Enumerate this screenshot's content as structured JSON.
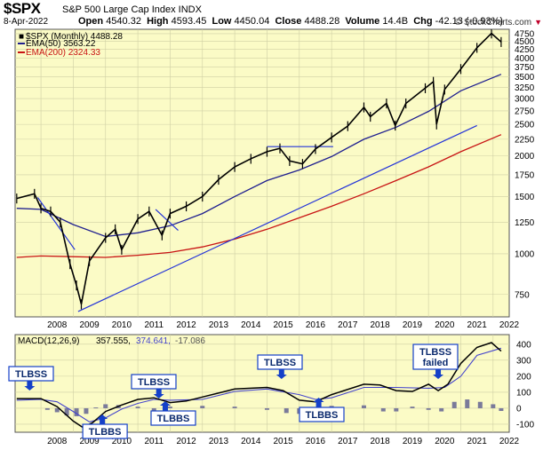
{
  "header": {
    "symbol": "$SPX",
    "description": "S&P 500 Large Cap Index  INDX",
    "date": "8-Apr-2022",
    "open_label": "Open",
    "open": "4540.32",
    "high_label": "High",
    "high": "4593.45",
    "low_label": "Low",
    "low": "4450.04",
    "close_label": "Close",
    "close": "4488.28",
    "volume_label": "Volume",
    "volume": "14.4B",
    "chg_label": "Chg",
    "chg": "-42.13 (-0.93%)",
    "watermark": "© StockCharts.com",
    "watermark_arrow": "▼"
  },
  "colors": {
    "panel_bg": "#fbfbc6",
    "price": "#000000",
    "ema50": "#1f1f8f",
    "ema200": "#c81414",
    "trendline": "#2434d8",
    "macd": "#000000",
    "signal": "#4444cc",
    "histogram": "#7a7a9a",
    "callout": "#1440c8"
  },
  "legend": {
    "price": "$SPX (Monthly) 4488.28",
    "ema50": "EMA(50) 3563.22",
    "ema200": "EMA(200) 2324.33"
  },
  "macd_legend": {
    "title": "MACD(12,26,9)",
    "v1": "357.555,",
    "v2": "374.641,",
    "v3": "-17.086"
  },
  "x_years": [
    "2008",
    "2009",
    "2010",
    "2011",
    "2012",
    "2013",
    "2014",
    "2015",
    "2016",
    "2017",
    "2018",
    "2019",
    "2020",
    "2021",
    "2022"
  ],
  "y_ticks_price": [
    750,
    1000,
    1250,
    1500,
    1750,
    2000,
    2250,
    2500,
    2750,
    3000,
    3250,
    3500,
    3750,
    4000,
    4250,
    4500,
    4750
  ],
  "y_ticks_macd": [
    -100,
    0,
    100,
    200,
    300,
    400
  ],
  "annotations": [
    {
      "text": "TLBSS",
      "year": 2007.65,
      "dir": "down"
    },
    {
      "text": "TLBSS",
      "year": 2011.65,
      "dir": "down"
    },
    {
      "text": "TLBBS",
      "year": 2011.85,
      "dir": "up"
    },
    {
      "text": "TLBBS",
      "year": 2009.9,
      "dir": "up"
    },
    {
      "text": "TLBSS",
      "year": 2015.45,
      "dir": "down"
    },
    {
      "text": "TLBBS",
      "year": 2016.6,
      "dir": "up"
    },
    {
      "text": "TLBSS",
      "year": 2020.3,
      "dir": "down",
      "line2": "failed"
    }
  ],
  "chart_data": {
    "type": "line",
    "title": "$SPX S&P 500 Large Cap Index INDX",
    "x_label": "",
    "y_label": "",
    "scale": "log",
    "ylim": [
      640,
      4900
    ],
    "xlim": [
      2007.2,
      2022.5
    ],
    "series": [
      {
        "name": "$SPX (Monthly) 4488.28",
        "x": [
          2007.25,
          2007.8,
          2008.0,
          2008.3,
          2008.6,
          2008.9,
          2009.1,
          2009.25,
          2009.5,
          2010.0,
          2010.3,
          2010.5,
          2011.0,
          2011.35,
          2011.75,
          2012.0,
          2012.5,
          2013.0,
          2013.5,
          2014.0,
          2014.5,
          2015.0,
          2015.4,
          2015.7,
          2016.1,
          2016.5,
          2017.0,
          2017.5,
          2018.0,
          2018.2,
          2018.7,
          2018.97,
          2019.3,
          2019.9,
          2020.15,
          2020.25,
          2020.5,
          2021.0,
          2021.5,
          2021.95,
          2022.25
        ],
        "values": [
          1480,
          1530,
          1380,
          1350,
          1250,
          930,
          800,
          700,
          950,
          1120,
          1190,
          1030,
          1280,
          1350,
          1140,
          1330,
          1400,
          1500,
          1690,
          1850,
          1960,
          2060,
          2110,
          1930,
          1890,
          2100,
          2280,
          2470,
          2820,
          2640,
          2900,
          2480,
          2900,
          3230,
          3380,
          2500,
          3200,
          3700,
          4300,
          4760,
          4480
        ]
      },
      {
        "name": "EMA(50) 3563.22",
        "x": [
          2007.25,
          2008.0,
          2009.0,
          2010.0,
          2011.0,
          2012.0,
          2013.0,
          2014.0,
          2015.0,
          2016.0,
          2017.0,
          2018.0,
          2019.0,
          2020.0,
          2021.0,
          2022.25
        ],
        "values": [
          1380,
          1370,
          1230,
          1130,
          1160,
          1220,
          1330,
          1500,
          1680,
          1810,
          1990,
          2250,
          2450,
          2740,
          3170,
          3563
        ]
      },
      {
        "name": "EMA(200) 2324.33",
        "x": [
          2007.25,
          2008.0,
          2009.0,
          2010.0,
          2011.0,
          2012.0,
          2013.0,
          2014.0,
          2015.0,
          2016.0,
          2017.0,
          2018.0,
          2019.0,
          2020.0,
          2021.0,
          2022.25
        ],
        "values": [
          975,
          985,
          980,
          975,
          990,
          1010,
          1050,
          1110,
          1190,
          1290,
          1400,
          1530,
          1680,
          1850,
          2060,
          2324
        ]
      }
    ],
    "macd": {
      "ylim": [
        -150,
        460
      ],
      "macd": {
        "name": "MACD(12,26,9)",
        "x": [
          2007.25,
          2008.0,
          2008.5,
          2009.0,
          2009.3,
          2009.6,
          2010.0,
          2010.5,
          2011.0,
          2011.5,
          2012.0,
          2012.5,
          2013.0,
          2014.0,
          2015.0,
          2015.5,
          2016.0,
          2016.5,
          2017.0,
          2018.0,
          2018.5,
          2019.0,
          2019.5,
          2020.0,
          2020.3,
          2020.6,
          2021.0,
          2021.5,
          2021.95,
          2022.25
        ],
        "values": [
          60,
          60,
          10,
          -80,
          -120,
          -90,
          -20,
          20,
          55,
          65,
          35,
          45,
          70,
          120,
          130,
          110,
          50,
          40,
          85,
          150,
          145,
          110,
          105,
          150,
          110,
          150,
          280,
          380,
          410,
          357
        ]
      },
      "signal": {
        "name": "signal",
        "x": [
          2007.25,
          2008.0,
          2008.5,
          2009.0,
          2009.5,
          2010.0,
          2010.5,
          2011.0,
          2011.5,
          2012.0,
          2013.0,
          2014.0,
          2015.0,
          2016.0,
          2016.5,
          2017.0,
          2018.0,
          2019.0,
          2020.0,
          2020.5,
          2021.0,
          2021.5,
          2022.25
        ],
        "values": [
          50,
          55,
          40,
          -20,
          -85,
          -60,
          -5,
          30,
          55,
          50,
          55,
          105,
          120,
          85,
          55,
          65,
          130,
          130,
          125,
          130,
          200,
          330,
          375
        ]
      },
      "histogram": {
        "x": [
          2008.2,
          2008.5,
          2008.8,
          2009.1,
          2009.4,
          2009.7,
          2010.0,
          2010.4,
          2011.0,
          2011.5,
          2012.0,
          2013.0,
          2014.0,
          2015.0,
          2015.6,
          2016.0,
          2016.5,
          2017.0,
          2018.0,
          2018.6,
          2019.0,
          2019.5,
          2020.0,
          2020.4,
          2020.8,
          2021.2,
          2021.6,
          2022.0,
          2022.25
        ],
        "values": [
          -10,
          -25,
          -45,
          -50,
          -35,
          5,
          25,
          20,
          10,
          -15,
          10,
          15,
          10,
          -10,
          -30,
          -35,
          -10,
          15,
          18,
          -20,
          -20,
          10,
          -10,
          -20,
          40,
          55,
          40,
          25,
          -17
        ]
      }
    },
    "trendlines": [
      {
        "x": [
          2009.15,
          2021.5
        ],
        "values": [
          665,
          2480
        ]
      },
      {
        "x": [
          2007.9,
          2009.05
        ],
        "values": [
          1490,
          1030
        ]
      },
      {
        "x": [
          2011.55,
          2012.25
        ],
        "values": [
          1370,
          1180
        ]
      },
      {
        "x": [
          2015.0,
          2017.05
        ],
        "values": [
          2135,
          2135
        ]
      }
    ]
  }
}
